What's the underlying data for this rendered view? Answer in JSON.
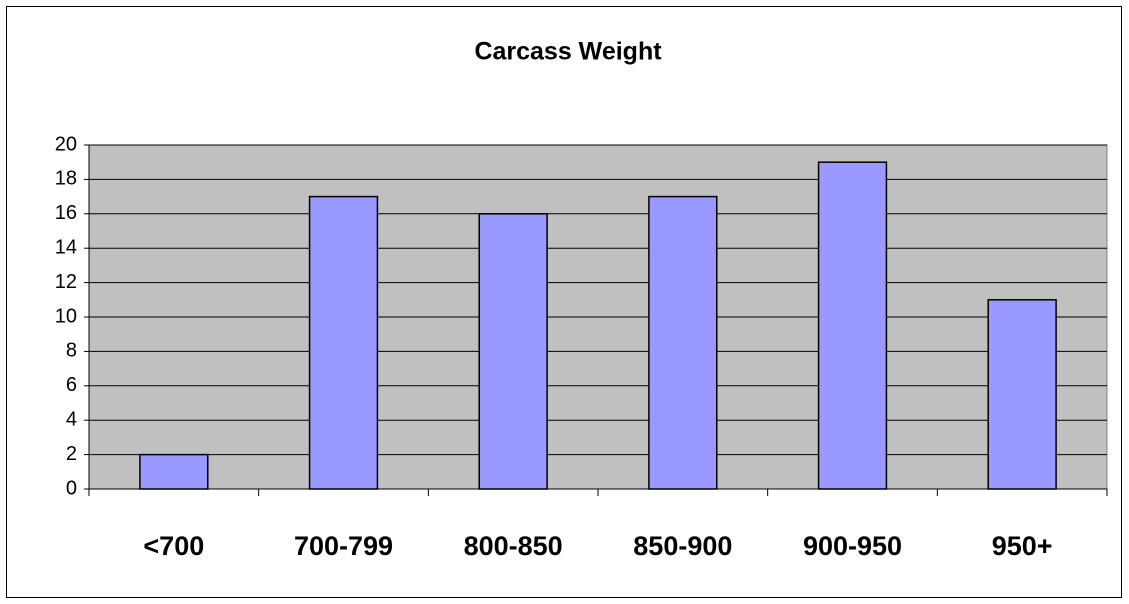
{
  "chart_data": {
    "type": "bar",
    "title": "Carcass Weight",
    "categories": [
      "<700",
      "700-799",
      "800-850",
      "850-900",
      "900-950",
      "950+"
    ],
    "values": [
      2,
      17,
      16,
      17,
      19,
      11
    ],
    "color": "#9999ff",
    "plot_background": "#c0c0c0",
    "ylim": [
      0,
      20
    ],
    "yticks": [
      0,
      2,
      4,
      6,
      8,
      10,
      12,
      14,
      16,
      18,
      20
    ],
    "grid": true
  }
}
